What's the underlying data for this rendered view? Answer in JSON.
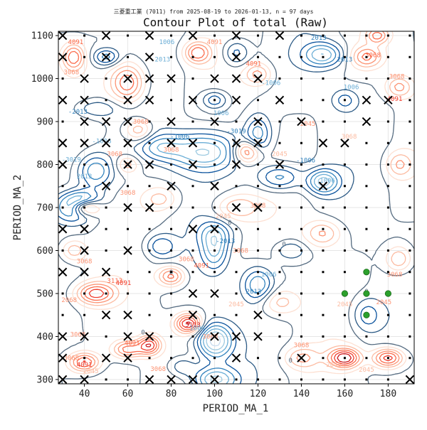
{
  "chart_data": {
    "type": "contour",
    "subtitle": "三菱重工業 (7011) from 2025-08-19 to 2026-01-13, n = 97 days",
    "title": "Contour Plot of total (Raw)",
    "xlabel": "PERIOD_MA_1",
    "ylabel": "PERIOD_MA_2",
    "xlim": [
      28,
      192
    ],
    "ylim": [
      290,
      1110
    ],
    "x_ticks": [
      40,
      60,
      80,
      100,
      120,
      140,
      160,
      180
    ],
    "y_ticks": [
      300,
      400,
      500,
      600,
      700,
      800,
      900,
      1000,
      1100
    ],
    "grid": true,
    "colormap": "blue (low) to red (high)",
    "contour_labels": [
      "-2013",
      "-1006",
      "-3019",
      "0",
      "1006",
      "2013",
      "2045",
      "3068",
      "4091",
      "5113"
    ],
    "x_grid_values": [
      30,
      40,
      50,
      60,
      70,
      80,
      90,
      100,
      110,
      120,
      130,
      140,
      150,
      160,
      170,
      180,
      190
    ],
    "y_grid_values": [
      300,
      350,
      400,
      450,
      500,
      550,
      600,
      650,
      700,
      750,
      800,
      850,
      900,
      950,
      1000,
      1050,
      1100
    ],
    "x_markers": [
      [
        30,
        1100
      ],
      [
        50,
        1100
      ],
      [
        70,
        1100
      ],
      [
        90,
        1100
      ],
      [
        110,
        1100
      ],
      [
        130,
        1100
      ],
      [
        30,
        1050
      ],
      [
        50,
        1050
      ],
      [
        70,
        1050
      ],
      [
        110,
        1050
      ],
      [
        40,
        1000
      ],
      [
        60,
        1000
      ],
      [
        70,
        1000
      ],
      [
        80,
        1000
      ],
      [
        100,
        1000
      ],
      [
        110,
        1000
      ],
      [
        120,
        1000
      ],
      [
        30,
        950
      ],
      [
        40,
        950
      ],
      [
        60,
        950
      ],
      [
        70,
        950
      ],
      [
        90,
        950
      ],
      [
        110,
        950
      ],
      [
        130,
        950
      ],
      [
        170,
        950
      ],
      [
        180,
        950
      ],
      [
        40,
        900
      ],
      [
        50,
        900
      ],
      [
        60,
        900
      ],
      [
        80,
        900
      ],
      [
        100,
        900
      ],
      [
        120,
        900
      ],
      [
        140,
        900
      ],
      [
        170,
        900
      ],
      [
        30,
        850
      ],
      [
        40,
        850
      ],
      [
        50,
        850
      ],
      [
        60,
        850
      ],
      [
        80,
        850
      ],
      [
        90,
        850
      ],
      [
        110,
        850
      ],
      [
        120,
        850
      ],
      [
        150,
        850
      ],
      [
        160,
        850
      ],
      [
        30,
        800
      ],
      [
        60,
        800
      ],
      [
        70,
        800
      ],
      [
        90,
        800
      ],
      [
        110,
        800
      ],
      [
        130,
        800
      ],
      [
        50,
        750
      ],
      [
        80,
        750
      ],
      [
        100,
        750
      ],
      [
        150,
        750
      ],
      [
        60,
        700
      ],
      [
        70,
        700
      ],
      [
        110,
        700
      ],
      [
        120,
        700
      ],
      [
        30,
        650
      ],
      [
        40,
        650
      ],
      [
        90,
        650
      ],
      [
        100,
        650
      ],
      [
        40,
        600
      ],
      [
        60,
        600
      ],
      [
        30,
        550
      ],
      [
        40,
        550
      ],
      [
        50,
        550
      ],
      [
        90,
        500
      ],
      [
        100,
        500
      ],
      [
        50,
        450
      ],
      [
        60,
        450
      ],
      [
        90,
        450
      ],
      [
        120,
        450
      ],
      [
        30,
        400
      ],
      [
        40,
        400
      ],
      [
        60,
        400
      ],
      [
        70,
        400
      ],
      [
        100,
        400
      ],
      [
        110,
        400
      ],
      [
        120,
        400
      ],
      [
        30,
        350
      ],
      [
        50,
        350
      ],
      [
        60,
        350
      ],
      [
        110,
        350
      ],
      [
        140,
        350
      ],
      [
        30,
        300
      ],
      [
        40,
        300
      ],
      [
        70,
        300
      ],
      [
        80,
        300
      ],
      [
        90,
        300
      ],
      [
        100,
        300
      ],
      [
        190,
        300
      ]
    ],
    "green_points": [
      [
        170,
        550
      ],
      [
        160,
        500
      ],
      [
        170,
        500
      ],
      [
        180,
        500
      ],
      [
        170,
        450
      ]
    ]
  }
}
